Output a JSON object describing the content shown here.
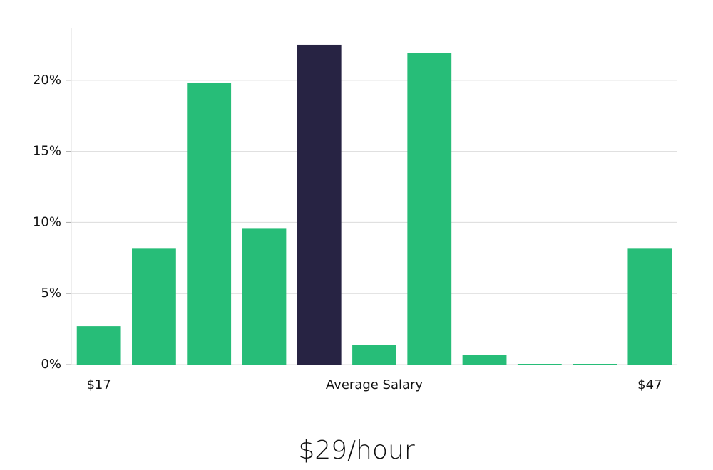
{
  "chart_data": {
    "type": "bar",
    "categories": [
      "$17",
      null,
      null,
      null,
      null,
      null,
      null,
      null,
      null,
      null,
      "$47"
    ],
    "values": [
      2.7,
      8.2,
      19.8,
      9.6,
      22.5,
      1.4,
      21.9,
      0.7,
      0,
      0,
      8.2
    ],
    "colors": [
      "#27bd78",
      "#27bd78",
      "#27bd78",
      "#27bd78",
      "#272343",
      "#27bd78",
      "#27bd78",
      "#27bd78",
      "#27bd78",
      "#27bd78",
      "#27bd78"
    ],
    "x_label": "Average Salary",
    "annotation": "$29/hour",
    "ylim": [
      0,
      23.7
    ],
    "yticks": [
      {
        "value": 0,
        "label": "0%"
      },
      {
        "value": 5,
        "label": "5%"
      },
      {
        "value": 10,
        "label": "10%"
      },
      {
        "value": 15,
        "label": "15%"
      },
      {
        "value": 20,
        "label": "20%"
      }
    ],
    "grid": true
  }
}
